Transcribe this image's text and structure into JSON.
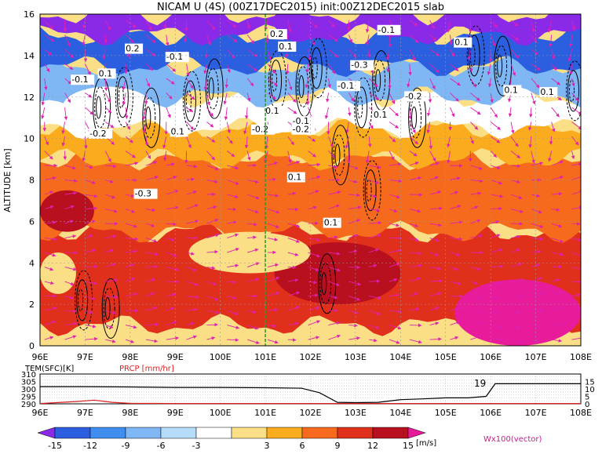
{
  "chart_data": {
    "type": "heatmap",
    "title": "NICAM U (4S) (00Z17DEC2015) init:00Z12DEC2015 slab",
    "ylabel": "ALTITUDE [km]",
    "x_ticks": [
      "96E",
      "97E",
      "98E",
      "99E",
      "100E",
      "101E",
      "102E",
      "103E",
      "104E",
      "105E",
      "106E",
      "107E",
      "108E"
    ],
    "y_ticks": [
      "0",
      "2",
      "4",
      "6",
      "8",
      "10",
      "12",
      "14",
      "16"
    ],
    "xlim": [
      96,
      108
    ],
    "ylim": [
      0,
      16
    ],
    "colorbar": {
      "labels": [
        "-15",
        "-12",
        "-9",
        "-6",
        "-3",
        "3",
        "6",
        "9",
        "12",
        "15"
      ],
      "colors": [
        "#8a2ae8",
        "#2c5fe0",
        "#3f8ef0",
        "#7fb7f5",
        "#b5dcf8",
        "#ffffff",
        "#fbdf86",
        "#fbab1e",
        "#f56a1c",
        "#e0301c",
        "#b8101e",
        "#e81b9a"
      ],
      "unit": "[m/s]"
    },
    "vector_label": "Wx100(vector)",
    "contour_labels": [
      "-0.1",
      "0.1",
      "-0.2",
      "0.2",
      "-0.3",
      "-0.1",
      "0.1",
      "-0.2",
      "0.2",
      "0.1",
      "0.1",
      "-0.1",
      "-0.2",
      "0.1",
      "-0.1",
      "-0.3",
      "-0.1",
      "-0.2",
      "0.1",
      "0.1",
      "0.1",
      "0.1",
      "0.1"
    ],
    "bands": [
      {
        "z_min": 0.0,
        "z_max": 1.0,
        "level": 6
      },
      {
        "z_min": 1.0,
        "z_max": 5.5,
        "level": 9
      },
      {
        "z_min": 5.5,
        "z_max": 9.0,
        "level": 8
      },
      {
        "z_min": 9.0,
        "z_max": 10.5,
        "level": 7
      },
      {
        "z_min": 10.5,
        "z_max": 12.0,
        "level": 5
      },
      {
        "z_min": 12.0,
        "z_max": 13.5,
        "level": 3
      },
      {
        "z_min": 13.5,
        "z_max": 15.0,
        "level": 1
      },
      {
        "z_min": 15.0,
        "z_max": 16.0,
        "level": 0
      }
    ],
    "patches": [
      {
        "x": [
          105.2,
          108
        ],
        "z": [
          0,
          3.2
        ],
        "level": 11
      },
      {
        "x": [
          96,
          97.2
        ],
        "z": [
          5.5,
          7.5
        ],
        "level": 10
      },
      {
        "x": [
          101.2,
          104.0
        ],
        "z": [
          2.0,
          5.0
        ],
        "level": 10
      },
      {
        "x": [
          99.3,
          102.0
        ],
        "z": [
          3.5,
          5.5
        ],
        "level": 6
      },
      {
        "x": [
          96,
          96.8
        ],
        "z": [
          2.5,
          4.5
        ],
        "level": 6
      },
      {
        "x": [
          96.5,
          98.5
        ],
        "z": [
          10.5,
          12.5
        ],
        "level": 5
      }
    ],
    "vertical_line_x": 101.0,
    "lower_panel": {
      "label_left": "TEM(SFC)[K]",
      "label_mid": "PRCP [mm/hr]",
      "left_ticks": [
        "310",
        "305",
        "300",
        "295",
        "290"
      ],
      "right_ticks": [
        "15",
        "10",
        "5",
        "0"
      ],
      "temp_label": "19",
      "temperature": {
        "x": [
          96,
          97,
          98,
          99,
          100,
          101,
          101.8,
          102.2,
          102.6,
          103.0,
          103.5,
          104,
          104.5,
          105,
          105.5,
          105.9,
          106.1,
          107,
          108
        ],
        "y": [
          301.5,
          301.5,
          301.3,
          301.0,
          301.0,
          300.8,
          300.5,
          297.5,
          291.0,
          290.8,
          291.0,
          292.8,
          293.3,
          294.0,
          294.0,
          295.0,
          303.5,
          303.5,
          303.5
        ]
      },
      "precip": {
        "x": [
          96,
          96.8,
          97.2,
          97.6,
          98,
          99,
          100,
          101,
          102,
          103,
          104,
          105,
          106,
          107,
          108
        ],
        "y": [
          0.2,
          1.5,
          2.5,
          1.0,
          0.3,
          0.2,
          0.2,
          0.2,
          0.2,
          0.2,
          0.2,
          0.2,
          0.2,
          0.2,
          0.2
        ]
      }
    }
  }
}
